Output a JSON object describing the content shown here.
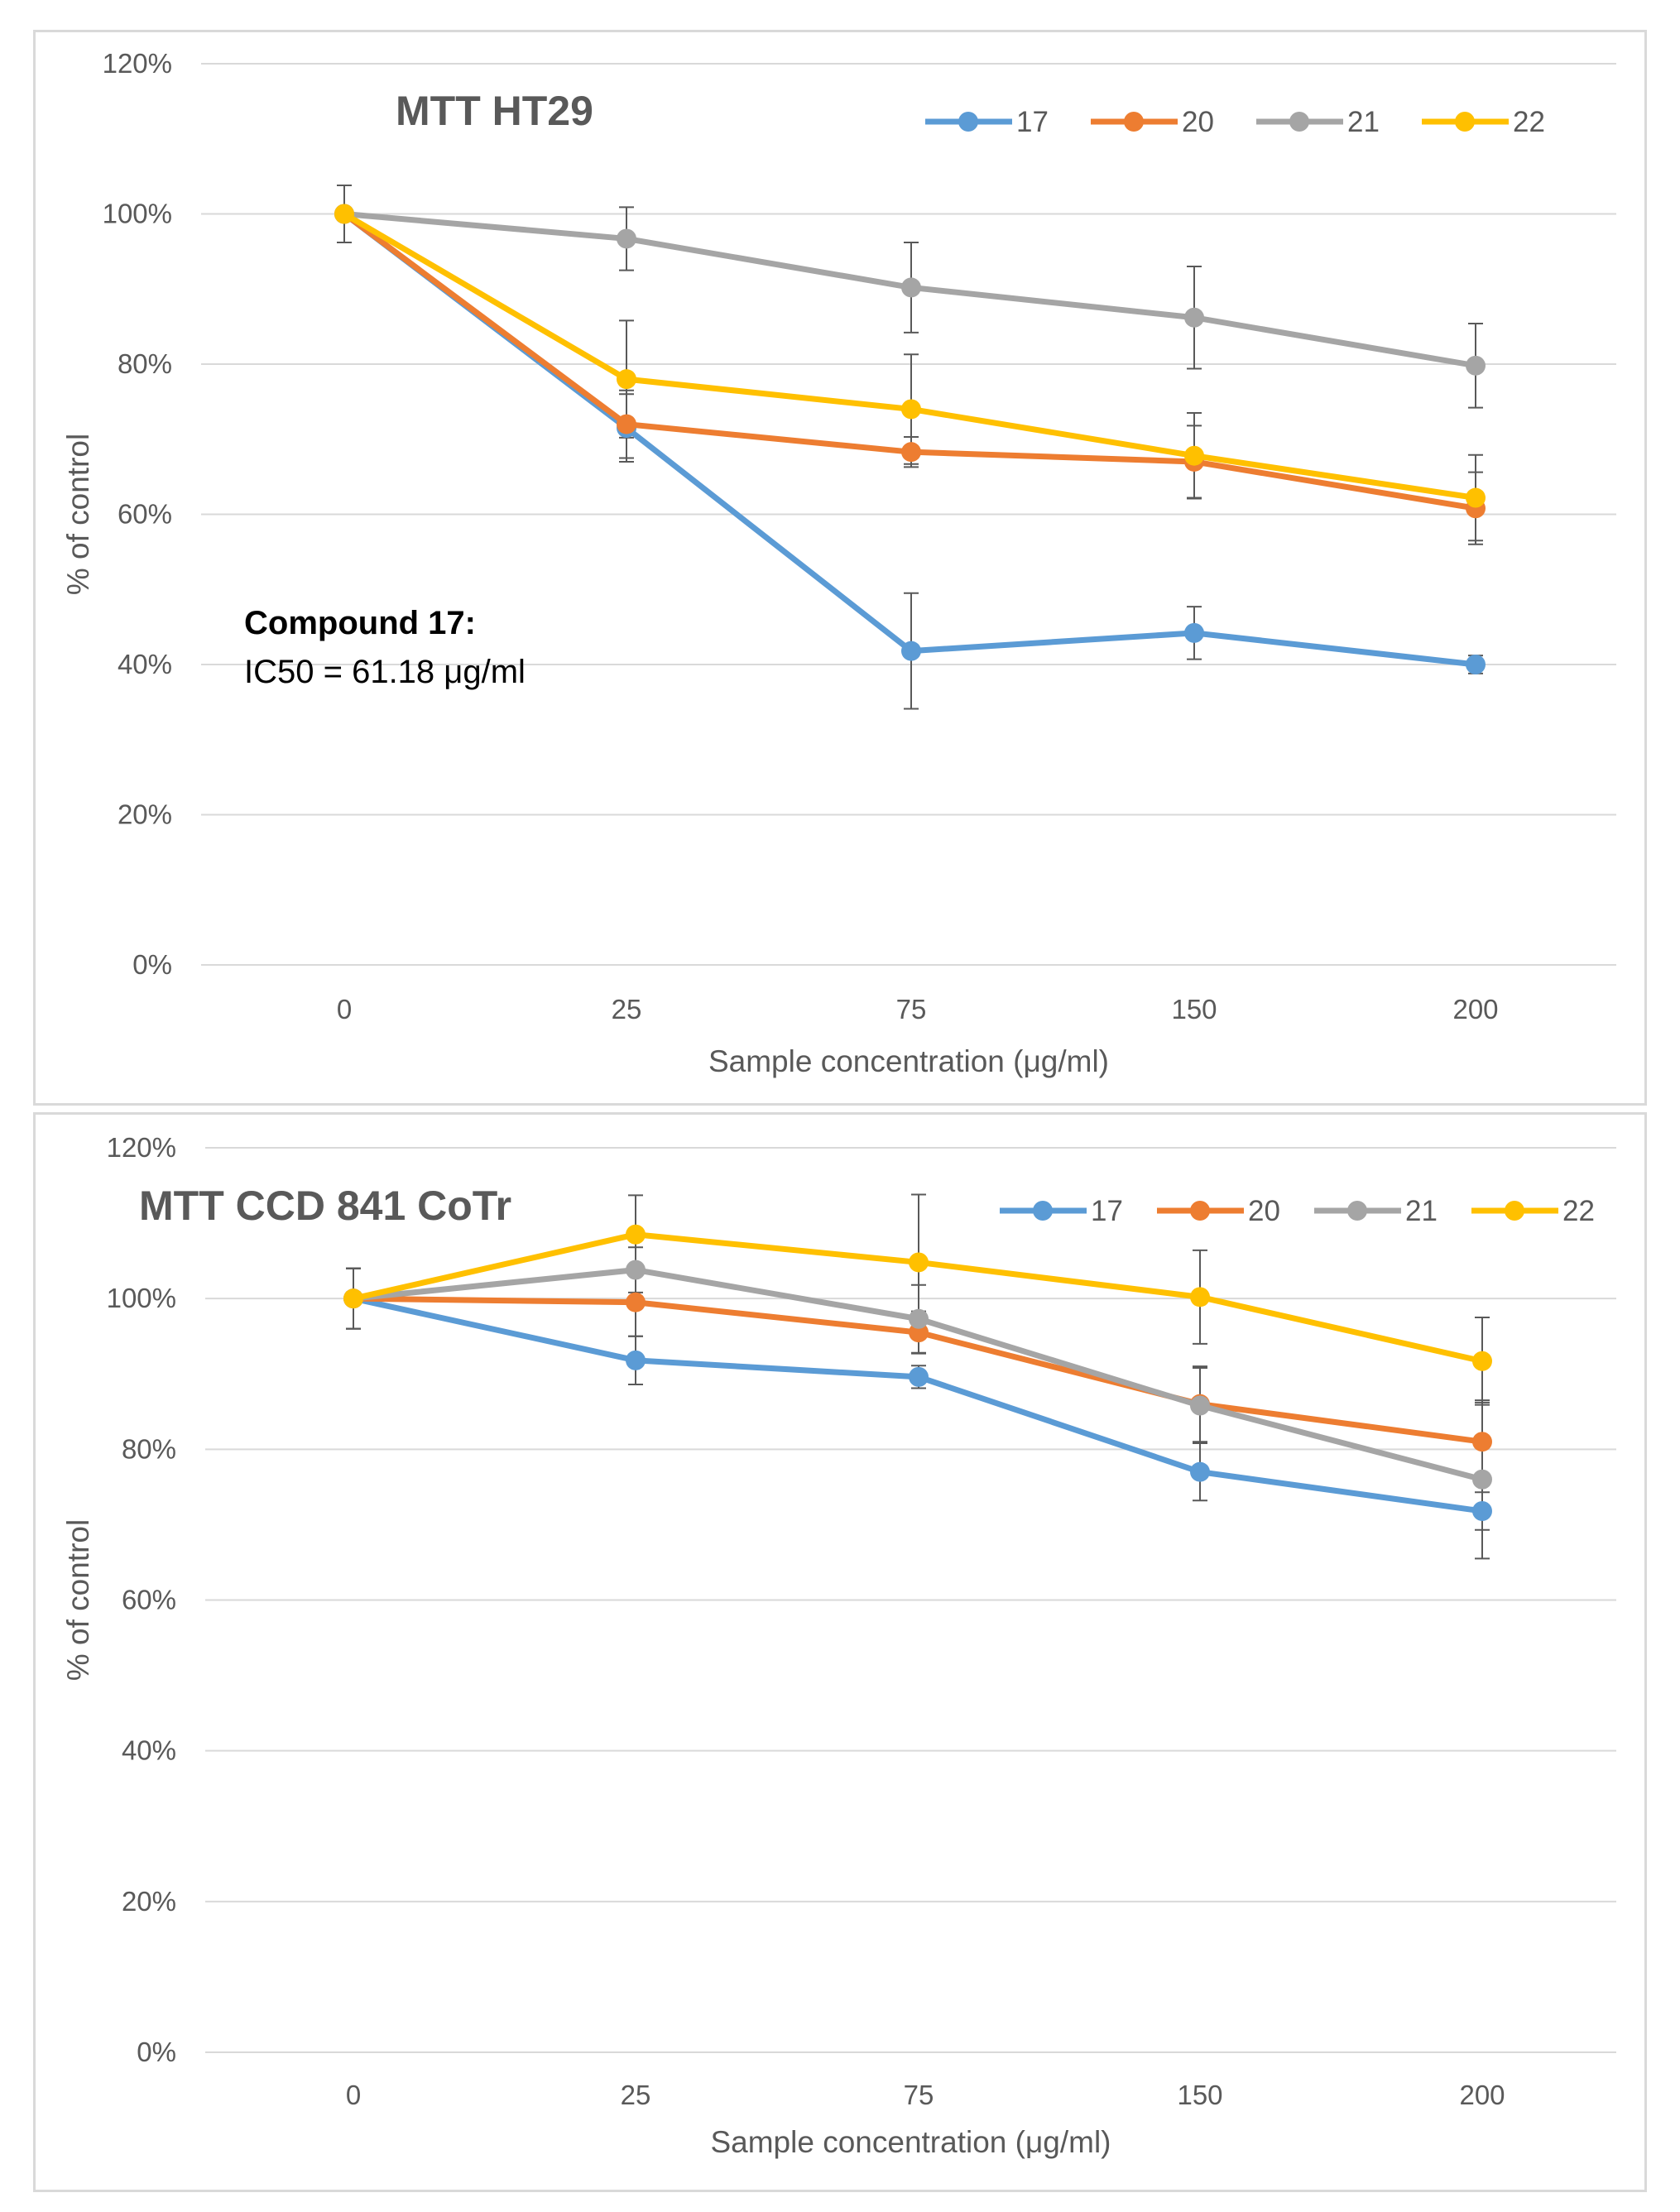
{
  "chart_data": [
    {
      "type": "line",
      "title": "MTT HT29",
      "xlabel": "Sample concentration (μg/ml)",
      "ylabel": "% of control",
      "categories": [
        "0",
        "25",
        "75",
        "150",
        "200"
      ],
      "yticks": [
        "0%",
        "20%",
        "40%",
        "60%",
        "80%",
        "100%",
        "120%"
      ],
      "ylim": [
        0,
        120
      ],
      "grid": true,
      "legend": "top-right",
      "annotation": {
        "bold": "Compound 17:",
        "text": "IC50 = 61.18 μg/ml"
      },
      "series": [
        {
          "name": "17",
          "color": "#5b9bd5",
          "values": [
            100,
            71.5,
            41.8,
            44.2,
            40.0
          ],
          "errors": [
            3.8,
            4.5,
            7.7,
            3.5,
            1.2
          ]
        },
        {
          "name": "20",
          "color": "#ed7d31",
          "values": [
            100,
            72.0,
            68.3,
            67.0,
            60.8
          ],
          "errors": [
            3.8,
            4.5,
            2.0,
            4.8,
            4.8
          ]
        },
        {
          "name": "21",
          "color": "#a5a5a5",
          "values": [
            100,
            96.7,
            90.2,
            86.2,
            79.8
          ],
          "errors": [
            3.8,
            4.2,
            6.0,
            6.8,
            5.6
          ]
        },
        {
          "name": "22",
          "color": "#ffc000",
          "values": [
            100,
            78.0,
            74.0,
            67.8,
            62.2
          ],
          "errors": [
            3.8,
            7.8,
            7.3,
            5.7,
            5.7
          ]
        }
      ]
    },
    {
      "type": "line",
      "title": "MTT CCD 841 CoTr",
      "xlabel": "Sample concentration (μg/ml)",
      "ylabel": "% of control",
      "categories": [
        "0",
        "25",
        "75",
        "150",
        "200"
      ],
      "yticks": [
        "0%",
        "20%",
        "40%",
        "60%",
        "80%",
        "100%",
        "120%"
      ],
      "ylim": [
        0,
        120
      ],
      "grid": true,
      "legend": "top-right",
      "series": [
        {
          "name": "17",
          "color": "#5b9bd5",
          "values": [
            100,
            91.8,
            89.6,
            77.0,
            71.8
          ],
          "errors": [
            4.0,
            3.2,
            1.5,
            3.8,
            2.5
          ]
        },
        {
          "name": "20",
          "color": "#ed7d31",
          "values": [
            100,
            99.5,
            95.5,
            86.0,
            81.0
          ],
          "errors": [
            4.0,
            4.5,
            2.8,
            5.0,
            5.2
          ]
        },
        {
          "name": "21",
          "color": "#a5a5a5",
          "values": [
            100,
            103.8,
            97.3,
            85.8,
            76.0
          ],
          "errors": [
            4.0,
            3.0,
            4.5,
            5.0,
            10.5
          ]
        },
        {
          "name": "22",
          "color": "#ffc000",
          "values": [
            100,
            108.5,
            104.8,
            100.2,
            91.7
          ],
          "errors": [
            4.0,
            5.2,
            9.0,
            6.2,
            5.8
          ]
        }
      ]
    }
  ]
}
